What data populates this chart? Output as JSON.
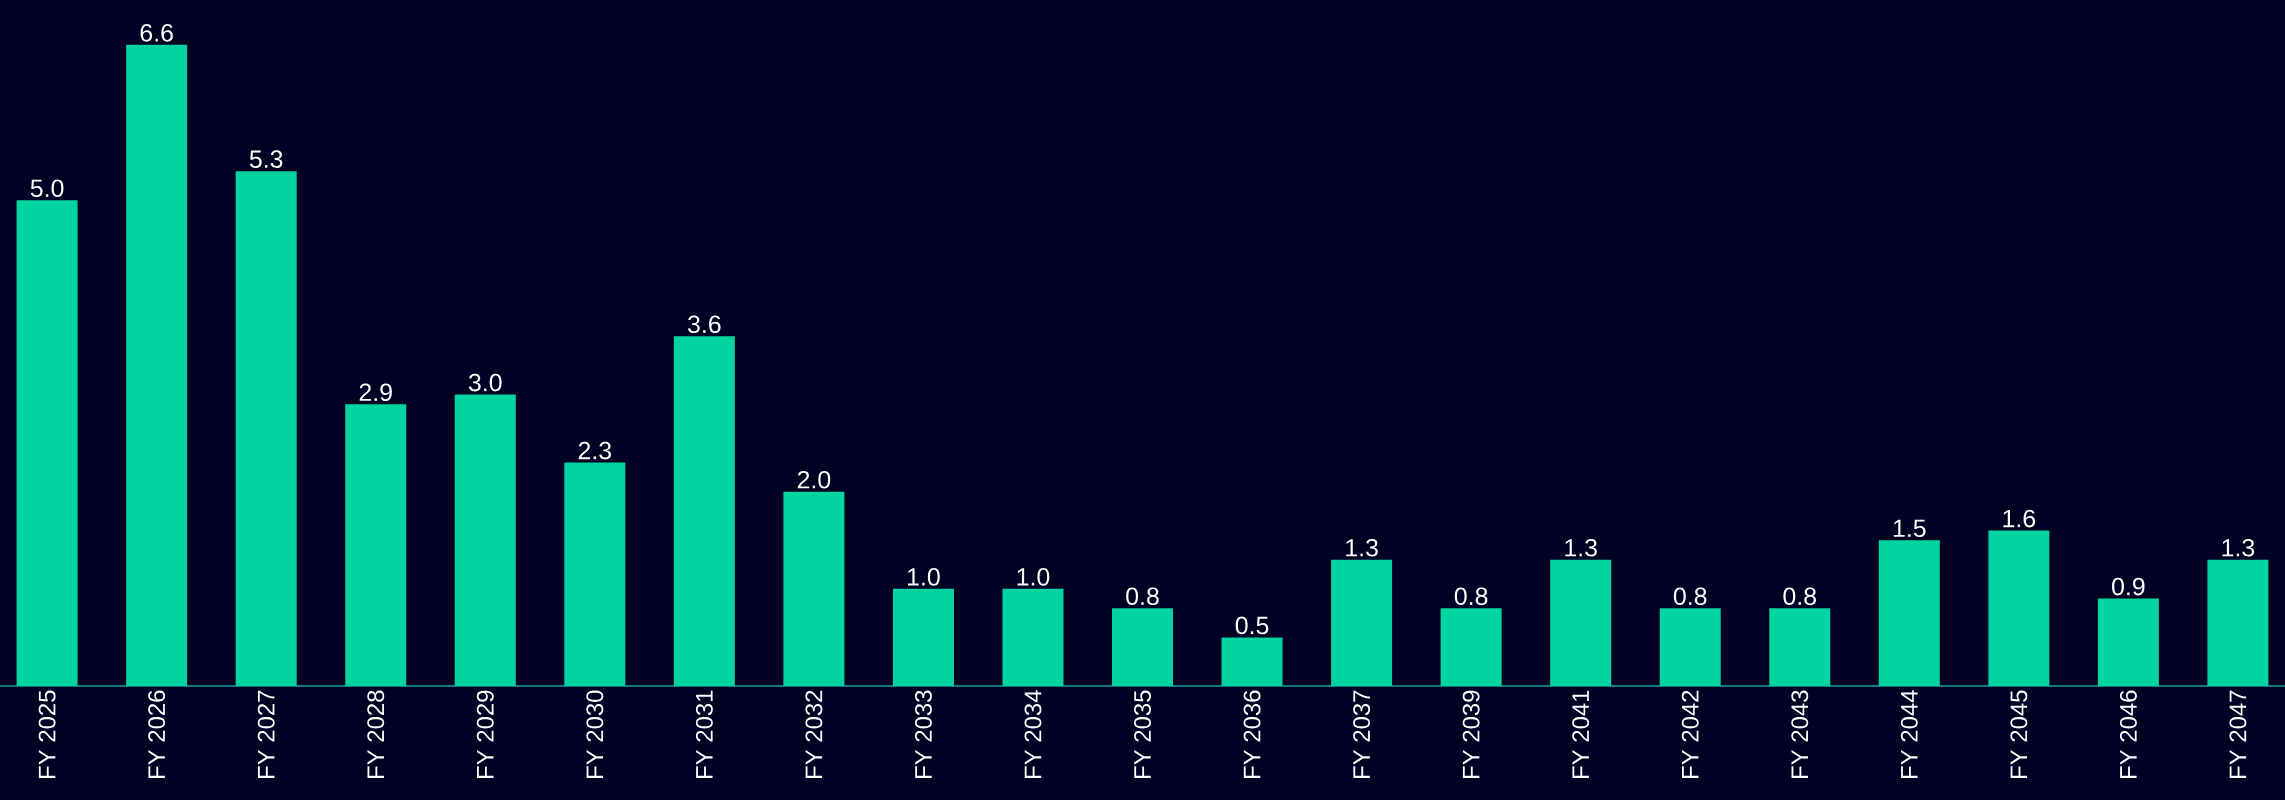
{
  "chart_data": {
    "type": "bar",
    "categories": [
      "FY 2025",
      "FY 2026",
      "FY 2027",
      "FY 2028",
      "FY 2029",
      "FY 2030",
      "FY 2031",
      "FY 2032",
      "FY 2033",
      "FY 2034",
      "FY 2035",
      "FY 2036",
      "FY 2037",
      "FY 2039",
      "FY 2041",
      "FY 2042",
      "FY 2043",
      "FY 2044",
      "FY 2045",
      "FY 2046",
      "FY 2047"
    ],
    "values": [
      5.0,
      6.6,
      5.3,
      2.9,
      3.0,
      2.3,
      3.6,
      2.0,
      1.0,
      1.0,
      0.8,
      0.5,
      1.3,
      0.8,
      1.3,
      0.8,
      0.8,
      1.5,
      1.6,
      0.9,
      1.3
    ],
    "color": "#00d4a0",
    "value_labels": [
      "5.0",
      "6.6",
      "5.3",
      "2.9",
      "3.0",
      "2.3",
      "3.6",
      "2.0",
      "1.0",
      "1.0",
      "0.8",
      "0.5",
      "1.3",
      "0.8",
      "1.3",
      "0.8",
      "0.8",
      "1.5",
      "1.6",
      "0.9",
      "1.3"
    ]
  }
}
